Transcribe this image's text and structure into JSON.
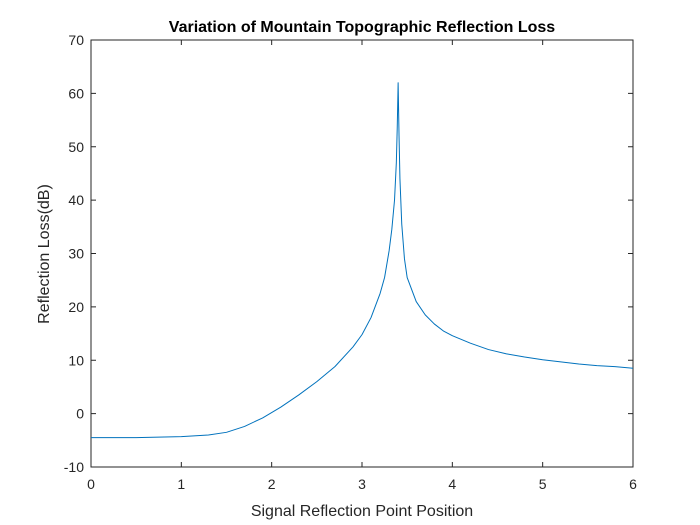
{
  "chart_data": {
    "type": "line",
    "title": "Variation of Mountain Topographic Reflection Loss",
    "xlabel": "Signal Reflection Point Position",
    "ylabel": "Reflection Loss(dB)",
    "xlim": [
      0,
      6
    ],
    "ylim": [
      -10,
      70
    ],
    "xticks": [
      "0",
      "1",
      "2",
      "3",
      "4",
      "5",
      "6"
    ],
    "yticks": [
      "-10",
      "0",
      "10",
      "20",
      "30",
      "40",
      "50",
      "60",
      "70"
    ],
    "grid": false,
    "line_color": "#0072BD",
    "series": [
      {
        "x": [
          0,
          0.5,
          1.0,
          1.3,
          1.5,
          1.7,
          1.9,
          2.1,
          2.3,
          2.5,
          2.7,
          2.9,
          3.0,
          3.1,
          3.2,
          3.25,
          3.3,
          3.33,
          3.36,
          3.38,
          3.39,
          3.4,
          3.41,
          3.42,
          3.44,
          3.47,
          3.5,
          3.6,
          3.7,
          3.8,
          3.9,
          4.0,
          4.2,
          4.4,
          4.6,
          4.8,
          5.0,
          5.2,
          5.4,
          5.6,
          5.8,
          6.0
        ],
        "values": [
          -4.5,
          -4.5,
          -4.3,
          -4.0,
          -3.5,
          -2.4,
          -0.8,
          1.2,
          3.5,
          6.0,
          8.8,
          12.5,
          14.8,
          18.0,
          22.5,
          25.5,
          30.5,
          34.5,
          40.0,
          47.0,
          53.5,
          62.0,
          52.0,
          44.0,
          35.5,
          29.0,
          25.5,
          21.0,
          18.5,
          16.8,
          15.5,
          14.6,
          13.2,
          12.0,
          11.2,
          10.6,
          10.1,
          9.7,
          9.3,
          9.0,
          8.8,
          8.5
        ]
      }
    ]
  }
}
